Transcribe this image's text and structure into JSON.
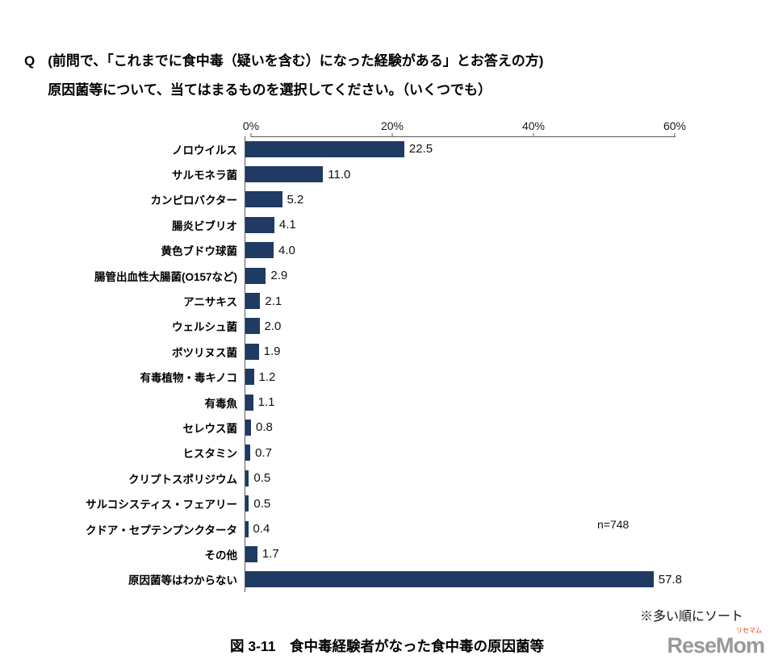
{
  "question": {
    "prefix": "Q",
    "line1": "(前問で、「これまでに食中毒（疑いを含む）になった経験がある」とお答えの方)",
    "line2": "原因菌等について、当てはまるものを選択してください。（いくつでも）"
  },
  "chart_data": {
    "type": "bar",
    "orientation": "horizontal",
    "title": "食中毒経験者がなった食中毒の原因菌等",
    "categories": [
      "ノロウイルス",
      "サルモネラ菌",
      "カンピロバクター",
      "腸炎ビブリオ",
      "黄色ブドウ球菌",
      "腸管出血性大腸菌(O157など)",
      "アニサキス",
      "ウェルシュ菌",
      "ボツリヌス菌",
      "有毒植物・毒キノコ",
      "有毒魚",
      "セレウス菌",
      "ヒスタミン",
      "クリプトスポリジウム",
      "サルコシスティス・フェアリー",
      "クドア・セプテンプンクタータ",
      "その他",
      "原因菌等はわからない"
    ],
    "values": [
      22.5,
      11.0,
      5.2,
      4.1,
      4.0,
      2.9,
      2.1,
      2.0,
      1.9,
      1.2,
      1.1,
      0.8,
      0.7,
      0.5,
      0.5,
      0.4,
      1.7,
      57.8
    ],
    "xlim": [
      0,
      60
    ],
    "x_ticks": [
      "0%",
      "20%",
      "40%",
      "60%"
    ],
    "x_tick_values": [
      0,
      20,
      40,
      60
    ],
    "bar_color": "#1f3a63",
    "grid": false,
    "legend": false,
    "sample_size_label": "n=748",
    "sort_note": "※多い順にソート",
    "caption": "図 3-11　食中毒経験者がなった食中毒の原因菌等"
  },
  "logo": {
    "text": "ReseMom",
    "sub": "リセマム"
  }
}
